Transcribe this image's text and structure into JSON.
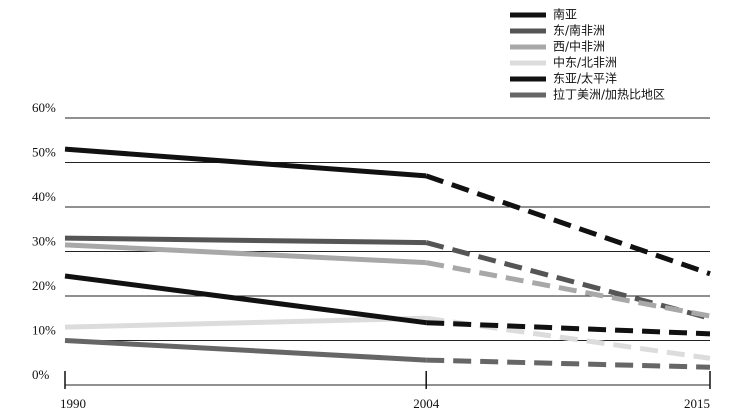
{
  "chart_data": {
    "type": "line",
    "x": [
      1990,
      2004,
      2015
    ],
    "xlim": [
      1990,
      2015
    ],
    "xticks": [
      1990,
      2004,
      2015
    ],
    "ylim": [
      0,
      60
    ],
    "yticks": [
      {
        "value": 0,
        "label": "0%"
      },
      {
        "value": 10,
        "label": "10%"
      },
      {
        "value": 20,
        "label": "20%"
      },
      {
        "value": 30,
        "label": "30%"
      },
      {
        "value": 40,
        "label": "40%"
      },
      {
        "value": 50,
        "label": "50%"
      },
      {
        "value": 60,
        "label": "60%"
      }
    ],
    "grid": true,
    "legend": "upper right",
    "dashed_from": 2004,
    "series": [
      {
        "name": "南亚",
        "color": "#111111",
        "values": [
          53,
          47,
          25
        ]
      },
      {
        "name": "东/南非洲",
        "color": "#555555",
        "values": [
          33,
          32,
          15
        ]
      },
      {
        "name": "西/中非洲",
        "color": "#a8a8a8",
        "values": [
          31.5,
          27.5,
          15.5
        ]
      },
      {
        "name": "中东/北非洲",
        "color": "#dcdcdc",
        "values": [
          13,
          15,
          6
        ]
      },
      {
        "name": "东亚/太平洋",
        "color": "#111111",
        "values": [
          24.5,
          14,
          11.5
        ]
      },
      {
        "name": "拉丁美洲/加热比地区",
        "color": "#666666",
        "values": [
          10,
          5.6,
          4
        ]
      }
    ]
  }
}
